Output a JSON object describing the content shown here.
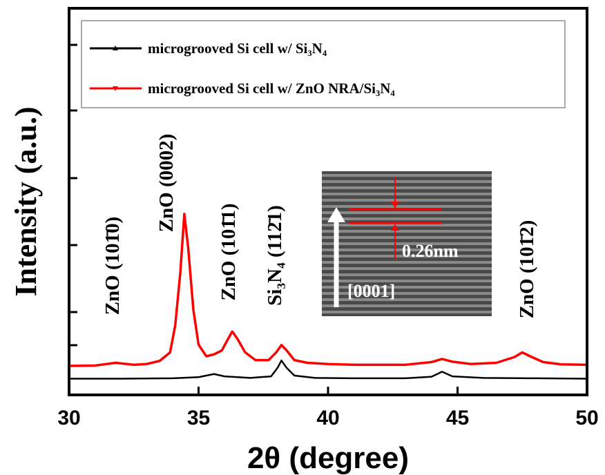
{
  "chart_data": {
    "type": "line",
    "xlabel": "2θ (degree)",
    "ylabel": "Intensity (a.u.)",
    "xlim": [
      30,
      50
    ],
    "xticks": [
      30,
      35,
      40,
      45,
      50
    ],
    "ylim": [
      0,
      100
    ],
    "legend": "top",
    "series": [
      {
        "name": "microgrooved Si cell w/ Si₃N₄",
        "color": "#000000",
        "x": [
          30,
          32,
          34,
          35,
          35.6,
          36,
          37,
          37.8,
          38.05,
          38.2,
          38.4,
          38.7,
          39.5,
          41,
          43,
          44,
          44.4,
          44.8,
          46,
          48,
          50
        ],
        "values": [
          4.2,
          4.2,
          4.3,
          4.6,
          5.4,
          4.8,
          4.4,
          4.8,
          7,
          8.9,
          7,
          5,
          4.4,
          4.3,
          4.3,
          4.7,
          6,
          4.8,
          4.4,
          4.3,
          4.2
        ]
      },
      {
        "name": "microgrooved Si cell w/ ZnO NRA/Si₃N₄",
        "color": "#ff0000",
        "x": [
          30,
          31,
          31.8,
          32.5,
          33,
          33.5,
          33.9,
          34.1,
          34.3,
          34.45,
          34.6,
          34.8,
          35,
          35.3,
          35.6,
          35.9,
          36.1,
          36.3,
          36.5,
          36.8,
          37.2,
          37.7,
          38,
          38.2,
          38.4,
          38.7,
          39.2,
          40,
          41,
          42,
          43,
          44,
          44.4,
          44.8,
          45.5,
          46.5,
          47.2,
          47.5,
          47.8,
          48.3,
          49,
          50
        ],
        "values": [
          7.5,
          7.6,
          8.3,
          7.8,
          8,
          8.8,
          11,
          18,
          32,
          46.8,
          38,
          22,
          13,
          10,
          10.5,
          11.5,
          14,
          16.4,
          14.5,
          11,
          9,
          9,
          11,
          12.9,
          11.5,
          9,
          8.3,
          8,
          7.8,
          7.8,
          7.8,
          8.5,
          9.3,
          8.6,
          8,
          8.3,
          9.8,
          11,
          10,
          8.5,
          7.9,
          7.8
        ]
      }
    ],
    "annotations": [
      "ZnO (101̄0)",
      "ZnO (0002)",
      "ZnO (101̄1)",
      "Si₃N₄ (112̄1)",
      "ZnO (101̄2)"
    ],
    "inset_labels": [
      "0.26nm",
      "[0001]"
    ]
  }
}
